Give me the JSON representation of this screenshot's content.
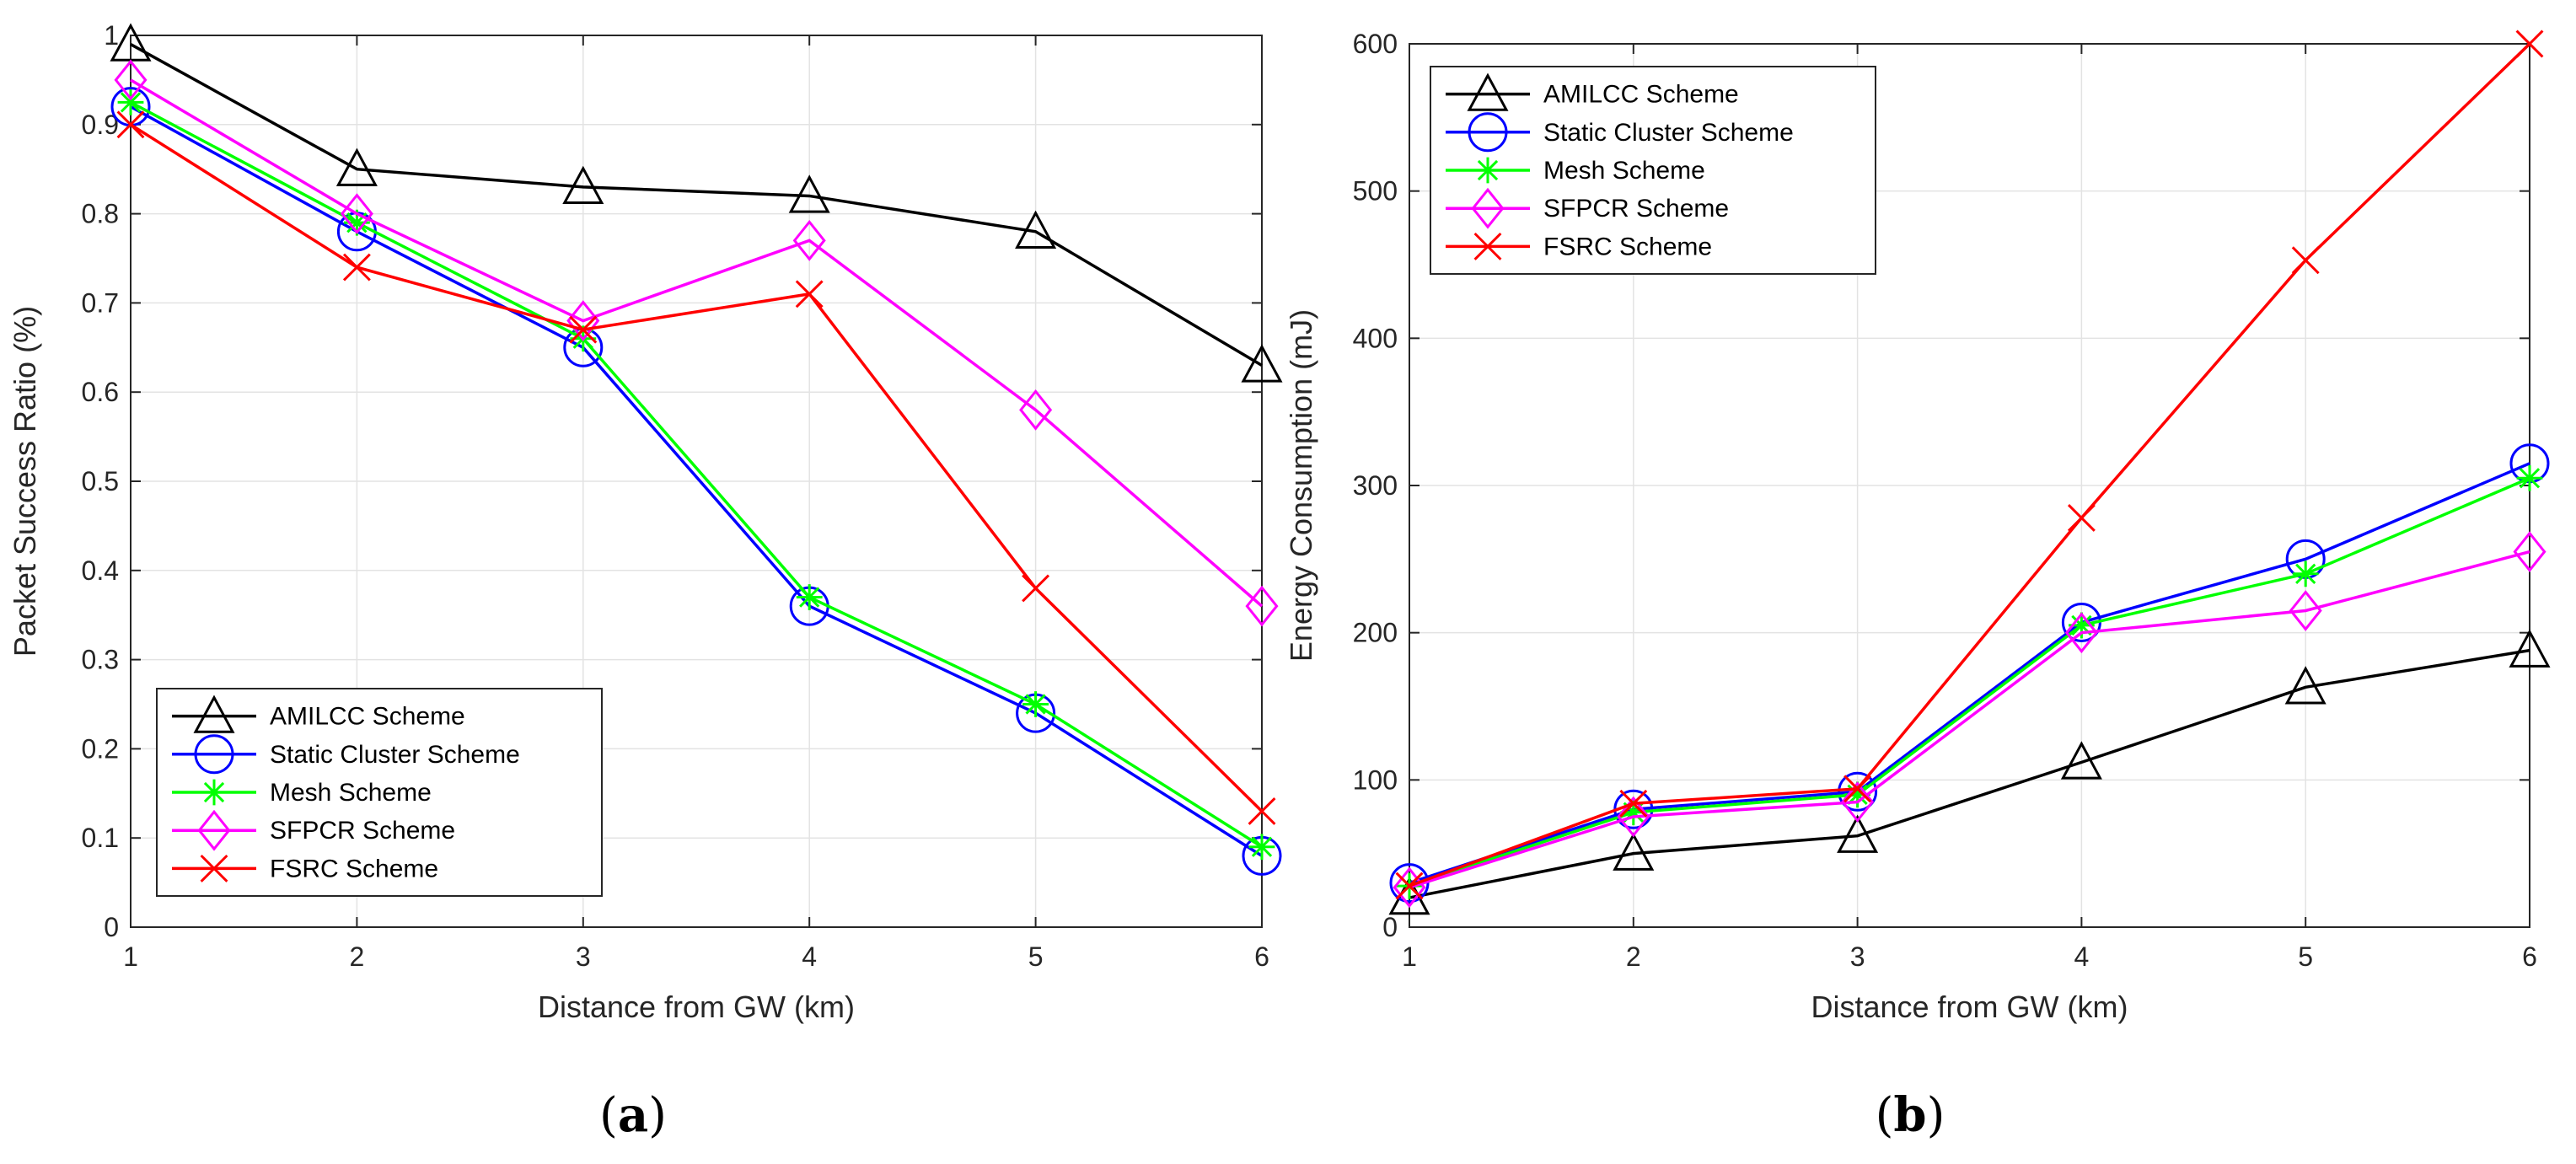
{
  "chart_data": [
    {
      "type": "line",
      "panel_label": "(a)",
      "panel_letter": "a",
      "xlabel": "Distance from GW (km)",
      "ylabel": "Packet Success Ratio (%)",
      "x": [
        1,
        2,
        3,
        4,
        5,
        6
      ],
      "xlim": [
        1,
        6
      ],
      "ylim": [
        0,
        1
      ],
      "xticks": [
        "1",
        "2",
        "3",
        "4",
        "5",
        "6"
      ],
      "yticks": [
        "0",
        "0.1",
        "0.2",
        "0.3",
        "0.4",
        "0.5",
        "0.6",
        "0.7",
        "0.8",
        "0.9",
        "1"
      ],
      "grid": true,
      "legend_position": "bottom-left",
      "series": [
        {
          "name": "AMILCC Scheme",
          "color": "#000000",
          "marker": "triangle",
          "values": [
            0.99,
            0.85,
            0.83,
            0.82,
            0.78,
            0.63
          ]
        },
        {
          "name": "Static Cluster Scheme",
          "color": "#0000FF",
          "marker": "circle",
          "values": [
            0.92,
            0.78,
            0.65,
            0.36,
            0.24,
            0.08
          ]
        },
        {
          "name": "Mesh Scheme",
          "color": "#00FF00",
          "marker": "asterisk",
          "values": [
            0.925,
            0.79,
            0.66,
            0.37,
            0.25,
            0.09
          ]
        },
        {
          "name": "SFPCR Scheme",
          "color": "#FF00FF",
          "marker": "diamond",
          "values": [
            0.95,
            0.8,
            0.68,
            0.77,
            0.58,
            0.36
          ]
        },
        {
          "name": "FSRC Scheme",
          "color": "#FF0000",
          "marker": "x",
          "values": [
            0.9,
            0.74,
            0.67,
            0.71,
            0.38,
            0.13
          ]
        }
      ]
    },
    {
      "type": "line",
      "panel_label": "(b)",
      "panel_letter": "b",
      "xlabel": "Distance from GW (km)",
      "ylabel": "Energy Consumption (mJ)",
      "x": [
        1,
        2,
        3,
        4,
        5,
        6
      ],
      "xlim": [
        1,
        6
      ],
      "ylim": [
        0,
        600
      ],
      "xticks": [
        "1",
        "2",
        "3",
        "4",
        "5",
        "6"
      ],
      "yticks": [
        "0",
        "100",
        "200",
        "300",
        "400",
        "500",
        "600"
      ],
      "grid": true,
      "legend_position": "top-left",
      "series": [
        {
          "name": "AMILCC Scheme",
          "color": "#000000",
          "marker": "triangle",
          "values": [
            20,
            50,
            62,
            112,
            163,
            188
          ]
        },
        {
          "name": "Static Cluster Scheme",
          "color": "#0000FF",
          "marker": "circle",
          "values": [
            30,
            80,
            92,
            207,
            250,
            315
          ]
        },
        {
          "name": "Mesh Scheme",
          "color": "#00FF00",
          "marker": "asterisk",
          "values": [
            28,
            78,
            90,
            205,
            240,
            305
          ]
        },
        {
          "name": "SFPCR Scheme",
          "color": "#FF00FF",
          "marker": "diamond",
          "values": [
            27,
            75,
            85,
            200,
            215,
            255
          ]
        },
        {
          "name": "FSRC Scheme",
          "color": "#FF0000",
          "marker": "x",
          "values": [
            28,
            84,
            94,
            278,
            453,
            600
          ]
        }
      ]
    }
  ]
}
